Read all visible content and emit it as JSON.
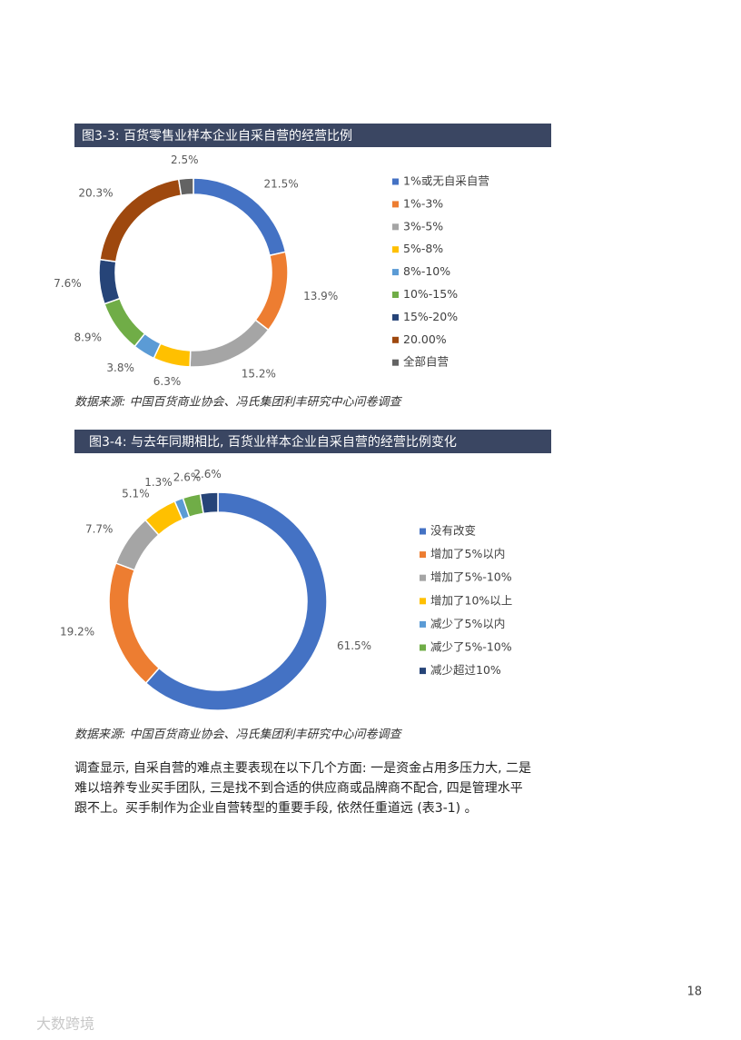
{
  "chart_data": [
    {
      "type": "donut",
      "title": "图3-3: 百货零售业样本企业自采自营的经营比例",
      "categories": [
        "1%或无自采自营",
        "1%-3%",
        "3%-5%",
        "5%-8%",
        "8%-10%",
        "10%-15%",
        "15%-20%",
        "20.00%",
        "全部自营"
      ],
      "values": [
        21.5,
        13.9,
        15.2,
        6.3,
        3.8,
        8.9,
        7.6,
        20.3,
        2.5
      ],
      "value_labels": [
        "21.5%",
        "13.9%",
        "15.2%",
        "6.3%",
        "3.8%",
        "8.9%",
        "7.6%",
        "20.3%",
        "2.5%"
      ],
      "colors": [
        "#4472c4",
        "#ed7d31",
        "#a5a5a5",
        "#ffc000",
        "#5b9bd5",
        "#70ad47",
        "#264478",
        "#9e480e",
        "#636363"
      ],
      "source": "数据来源: 中国百货商业协会、冯氏集团利丰研究中心问卷调查"
    },
    {
      "type": "donut",
      "title": "图3-4: 与去年同期相比, 百货业样本企业自采自营的经营比例变化",
      "categories": [
        "没有改变",
        "增加了5%以内",
        "增加了5%-10%",
        "增加了10%以上",
        "减少了5%以内",
        "减少了5%-10%",
        "减少超过10%"
      ],
      "values": [
        61.5,
        19.2,
        7.7,
        5.1,
        1.3,
        2.6,
        2.6
      ],
      "value_labels": [
        "61.5%",
        "19.2%",
        "7.7%",
        "5.1%",
        "1.3%",
        "2.6%",
        "2.6%"
      ],
      "colors": [
        "#4472c4",
        "#ed7d31",
        "#a5a5a5",
        "#ffc000",
        "#5b9bd5",
        "#70ad47",
        "#264478"
      ],
      "source": "数据来源: 中国百货商业协会、冯氏集团利丰研究中心问卷调查"
    }
  ],
  "paragraph": [
    "调查显示, 自采自营的难点主要表现在以下几个方面: 一是资金占用多压力大, 二是",
    "难以培养专业买手团队, 三是找不到合适的供应商或品牌商不配合, 四是管理水平",
    "跟不上。买手制作为企业自营转型的重要手段, 依然任重道远 (表3-1) 。"
  ],
  "page_number": "18",
  "watermark": "大数跨境"
}
